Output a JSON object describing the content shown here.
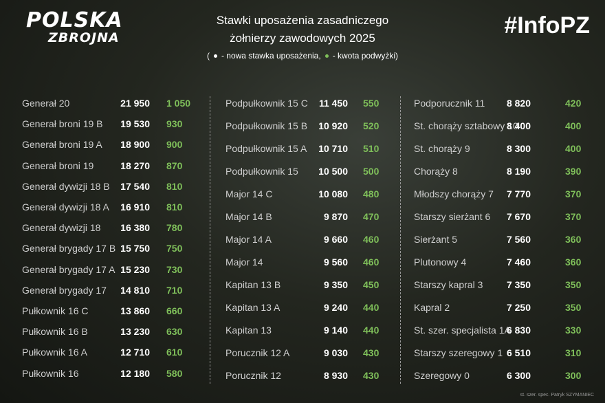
{
  "header": {
    "logo": [
      "POLSKA",
      "ZBROJNA"
    ],
    "title": [
      "Stawki uposażenia zasadniczego",
      "żołnierzy zawodowych 2025"
    ],
    "legend": {
      "open": "(",
      "new_rate": "- nowa stawka uposażenia,",
      "raise": "- kwota podwyżki)"
    },
    "hashtag": "#InfoPZ"
  },
  "table": {
    "columns": [
      [
        [
          "Generał 20",
          "21 950",
          "1 050"
        ],
        [
          "Generał broni 19 B",
          "19 530",
          "930"
        ],
        [
          "Generał broni 19 A",
          "18 900",
          "900"
        ],
        [
          "Generał broni 19",
          "18 270",
          "870"
        ],
        [
          "Generał dywizji 18 B",
          "17 540",
          "810"
        ],
        [
          "Generał dywizji 18 A",
          "16 910",
          "810"
        ],
        [
          "Generał dywizji 18",
          "16 380",
          "780"
        ],
        [
          "Generał brygady 17 B",
          "15 750",
          "750"
        ],
        [
          "Generał brygady 17 A",
          "15 230",
          "730"
        ],
        [
          "Generał brygady 17",
          "14 810",
          "710"
        ],
        [
          "Pułkownik 16 C",
          "13 860",
          "660"
        ],
        [
          "Pułkownik 16 B",
          "13 230",
          "630"
        ],
        [
          "Pułkownik 16 A",
          "12 710",
          "610"
        ],
        [
          "Pułkownik 16",
          "12 180",
          "580"
        ]
      ],
      [
        [
          "Podpułkownik 15 C",
          "11 450",
          "550"
        ],
        [
          "Podpułkownik 15 B",
          "10 920",
          "520"
        ],
        [
          "Podpułkownik 15 A",
          "10 710",
          "510"
        ],
        [
          "Podpułkownik 15",
          "10 500",
          "500"
        ],
        [
          "Major 14 C",
          "10 080",
          "480"
        ],
        [
          "Major 14 B",
          "9 870",
          "470"
        ],
        [
          "Major 14 A",
          "9 660",
          "460"
        ],
        [
          "Major 14",
          "9 560",
          "460"
        ],
        [
          "Kapitan 13 B",
          "9 350",
          "450"
        ],
        [
          "Kapitan 13 A",
          "9 240",
          "440"
        ],
        [
          "Kapitan 13",
          "9 140",
          "440"
        ],
        [
          "Porucznik 12 A",
          "9 030",
          "430"
        ],
        [
          "Porucznik 12",
          "8 930",
          "430"
        ]
      ],
      [
        [
          "Podporucznik 11",
          "8 820",
          "420"
        ],
        [
          "St. chorąży sztabowy 10",
          "8 400",
          "400"
        ],
        [
          "St. chorąży 9",
          "8 300",
          "400"
        ],
        [
          "Chorąży 8",
          "8 190",
          "390"
        ],
        [
          "Młodszy chorąży 7",
          "7 770",
          "370"
        ],
        [
          "Starszy sierżant 6",
          "7 670",
          "370"
        ],
        [
          "Sierżant 5",
          "7 560",
          "360"
        ],
        [
          "Plutonowy 4",
          "7 460",
          "360"
        ],
        [
          "Starszy kapral 3",
          "7 350",
          "350"
        ],
        [
          "Kapral 2",
          "7 250",
          "350"
        ],
        [
          "St. szer. specjalista 1A",
          "6 830",
          "330"
        ],
        [
          "Starszy szeregowy 1",
          "6 510",
          "310"
        ],
        [
          "Szeregowy 0",
          "6 300",
          "300"
        ]
      ]
    ]
  },
  "footer": {
    "credit": "st. szer. spec. Patryk SZYMANIEC"
  }
}
